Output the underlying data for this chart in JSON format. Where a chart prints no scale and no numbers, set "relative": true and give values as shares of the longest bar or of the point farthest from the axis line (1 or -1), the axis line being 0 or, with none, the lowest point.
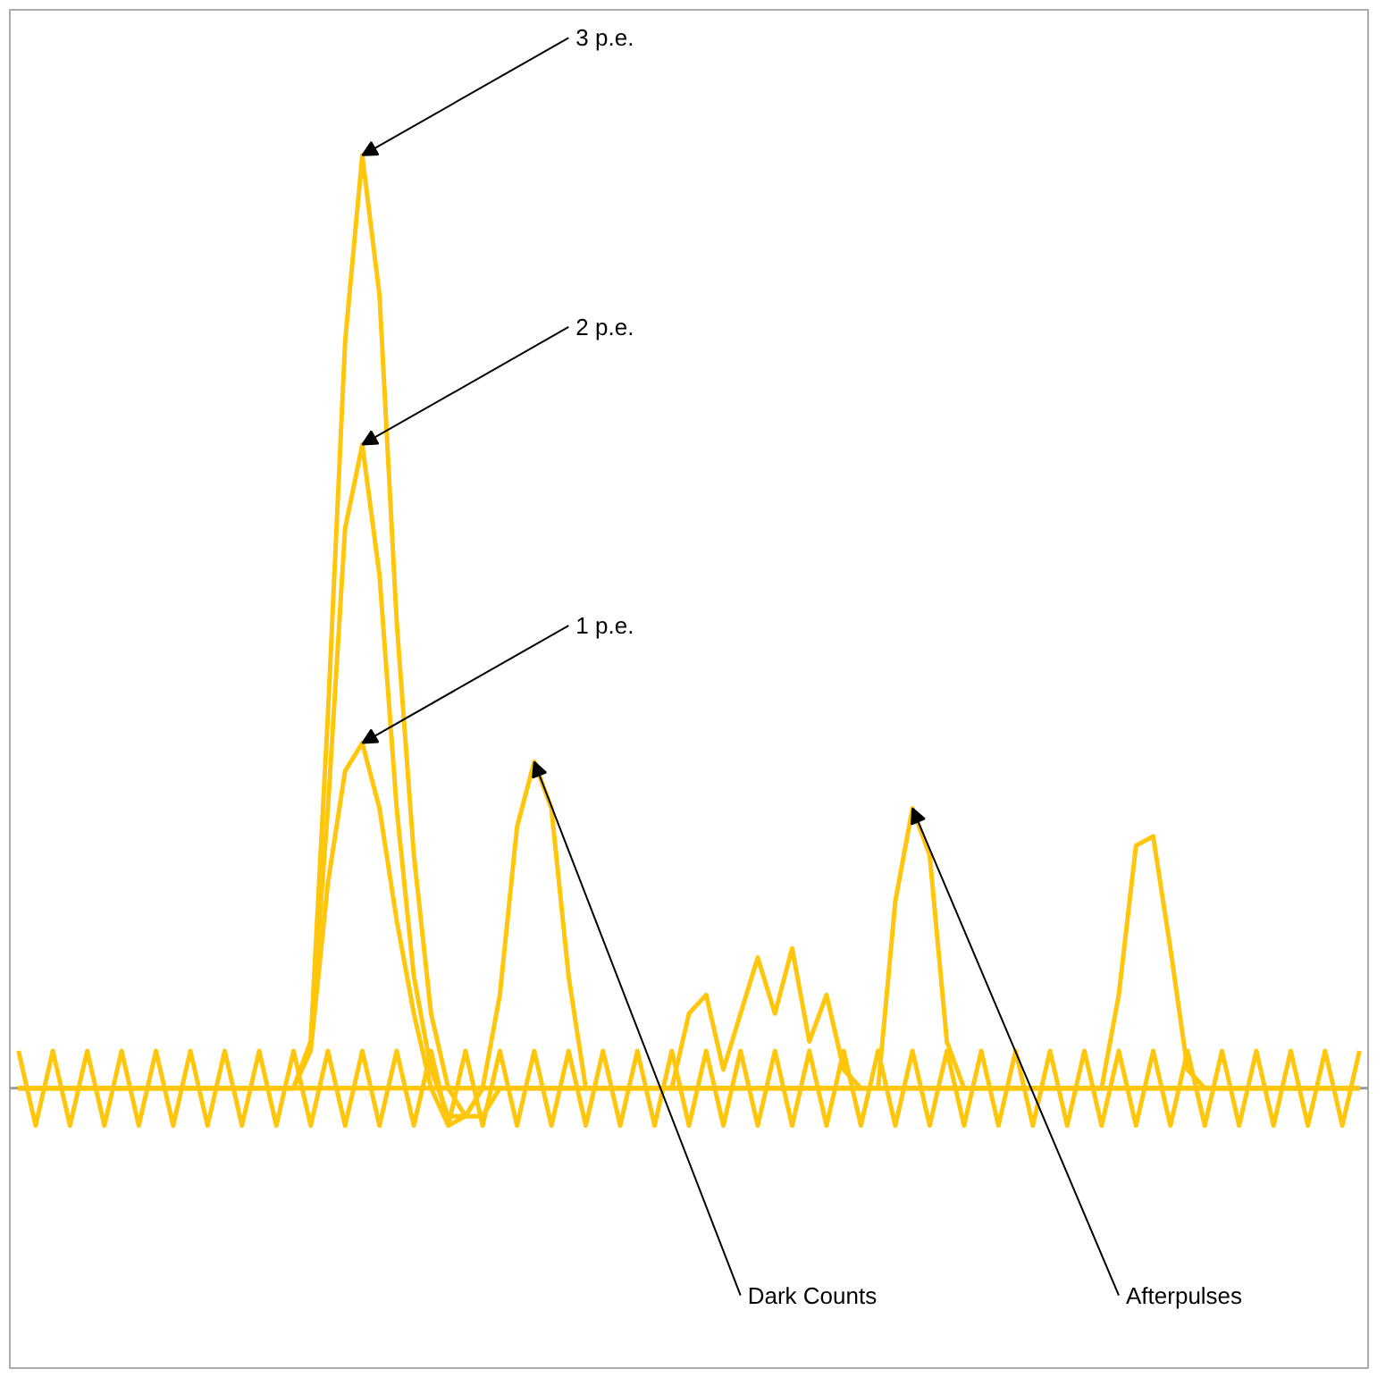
{
  "chart_data": {
    "type": "line",
    "relative": true,
    "categories": [
      null,
      null,
      null,
      null,
      null,
      null,
      null,
      null,
      null,
      null,
      null,
      null,
      null,
      null,
      null,
      null,
      null,
      null,
      null,
      null,
      null,
      null,
      null,
      null,
      null,
      null,
      null,
      null,
      null,
      null,
      null,
      null,
      null,
      null,
      null,
      null,
      null,
      null,
      null,
      null,
      null,
      null,
      null,
      null,
      null,
      null,
      null,
      null,
      null,
      null,
      null,
      null,
      null,
      null,
      null,
      null,
      null,
      null,
      null,
      null,
      null,
      null,
      null,
      null,
      null,
      null,
      null,
      null,
      null,
      null,
      null,
      null,
      null,
      null,
      null,
      null,
      null,
      null,
      null
    ],
    "series": [
      {
        "color": "#ffc60b",
        "values": [
          0,
          0,
          0,
          0,
          0,
          0,
          0,
          0,
          0,
          0,
          0,
          0,
          0,
          0,
          0,
          0,
          0,
          0.05,
          0.4,
          0.8,
          1.0,
          0.85,
          0.5,
          0.25,
          0.08,
          0,
          -0.03,
          -0.03,
          0,
          0,
          0,
          0,
          0,
          0,
          0,
          0,
          0,
          0,
          0,
          0,
          0,
          0,
          0,
          0,
          0,
          0,
          0,
          0,
          0,
          0,
          0,
          0,
          0,
          0,
          0,
          0,
          0,
          0,
          0,
          0,
          0,
          0,
          0,
          0,
          0,
          0,
          0,
          0,
          0,
          0,
          0,
          0,
          0,
          0,
          0,
          0,
          0,
          0,
          0
        ]
      },
      {
        "color": "#ffc60b",
        "values": [
          0,
          0,
          0,
          0,
          0,
          0,
          0,
          0,
          0,
          0,
          0,
          0,
          0,
          0,
          0,
          0,
          0,
          0.05,
          0.3,
          0.6,
          0.69,
          0.55,
          0.3,
          0.12,
          0.02,
          -0.03,
          -0.03,
          0,
          0,
          0,
          0,
          0,
          0,
          0,
          0,
          0,
          0,
          0,
          0,
          0,
          0,
          0,
          0,
          0,
          0,
          0,
          0,
          0,
          0,
          0,
          0,
          0,
          0,
          0,
          0,
          0,
          0,
          0,
          0,
          0,
          0,
          0,
          0,
          0,
          0,
          0,
          0,
          0,
          0,
          0,
          0,
          0,
          0,
          0,
          0,
          0,
          0,
          0,
          0
        ]
      },
      {
        "color": "#ffc60b",
        "values": [
          0,
          0,
          0,
          0,
          0,
          0,
          0,
          0,
          0,
          0,
          0,
          0,
          0,
          0,
          0,
          0,
          0,
          0.04,
          0.22,
          0.34,
          0.37,
          0.3,
          0.18,
          0.08,
          0,
          -0.04,
          -0.03,
          0,
          0,
          0,
          0,
          0,
          0,
          0,
          0,
          0,
          0,
          0,
          0,
          0,
          0,
          0,
          0,
          0,
          0,
          0,
          0,
          0,
          0,
          0,
          0,
          0,
          0,
          0,
          0,
          0,
          0,
          0,
          0,
          0,
          0,
          0,
          0,
          0,
          0,
          0,
          0,
          0,
          0,
          0,
          0,
          0,
          0,
          0,
          0,
          0,
          0,
          0,
          0
        ]
      },
      {
        "color": "#ffc60b",
        "values": [
          0,
          0,
          0,
          0,
          0,
          0,
          0,
          0,
          0,
          0,
          0,
          0,
          0,
          0,
          0,
          0,
          0,
          0,
          0,
          0,
          0,
          0,
          0,
          0,
          0,
          0,
          0,
          0,
          0.1,
          0.28,
          0.35,
          0.3,
          0.12,
          0,
          0,
          0,
          0,
          0,
          0,
          0,
          0,
          0,
          0,
          0,
          0,
          0,
          0,
          0,
          0,
          0,
          0,
          0,
          0,
          0,
          0,
          0,
          0,
          0,
          0,
          0,
          0,
          0,
          0,
          0,
          0,
          0,
          0,
          0,
          0,
          0,
          0,
          0,
          0,
          0,
          0,
          0,
          0,
          0,
          0
        ]
      },
      {
        "color": "#ffc60b",
        "values": [
          0,
          0,
          0,
          0,
          0,
          0,
          0,
          0,
          0,
          0,
          0,
          0,
          0,
          0,
          0,
          0,
          0,
          0,
          0,
          0,
          0,
          0,
          0,
          0,
          0,
          0,
          0,
          0,
          0,
          0,
          0,
          0,
          0,
          0,
          0,
          0,
          0,
          0,
          0,
          0.08,
          0.1,
          0.02,
          0.08,
          0.14,
          0.08,
          0.15,
          0.05,
          0.1,
          0.02,
          0,
          0,
          0.2,
          0.3,
          0.25,
          0.05,
          0,
          0,
          0,
          0,
          0,
          0,
          0,
          0,
          0,
          0.1,
          0.26,
          0.27,
          0.15,
          0.02,
          0,
          0,
          0,
          0,
          0,
          0,
          0,
          0,
          0,
          0
        ]
      },
      {
        "color": "#ffc60b",
        "values": [
          0.04,
          -0.04,
          0.04,
          -0.04,
          0.04,
          -0.04,
          0.04,
          -0.04,
          0.04,
          -0.04,
          0.04,
          -0.04,
          0.04,
          -0.04,
          0.04,
          -0.04,
          0.04,
          -0.04,
          0.04,
          -0.04,
          0.04,
          -0.04,
          0.04,
          -0.04,
          0.04,
          -0.04,
          0.04,
          -0.04,
          0.04,
          -0.04,
          0.04,
          -0.04,
          0.04,
          -0.04,
          0.04,
          -0.04,
          0.04,
          -0.04,
          0.04,
          -0.04,
          0.04,
          -0.04,
          0.04,
          -0.04,
          0.04,
          -0.04,
          0.04,
          -0.04,
          0.04,
          -0.04,
          0.04,
          -0.04,
          0.04,
          -0.04,
          0.04,
          -0.04,
          0.04,
          -0.04,
          0.04,
          -0.04,
          0.04,
          -0.04,
          0.04,
          -0.04,
          0.04,
          -0.04,
          0.04,
          -0.04,
          0.04,
          -0.04,
          0.04,
          -0.04,
          0.04,
          -0.04,
          0.04,
          -0.04,
          0.04,
          -0.04,
          0.04
        ]
      }
    ],
    "annotations": [
      "3 p.e.",
      "2 p.e.",
      "1 p.e.",
      "Dark Counts",
      "Afterpulses"
    ]
  }
}
